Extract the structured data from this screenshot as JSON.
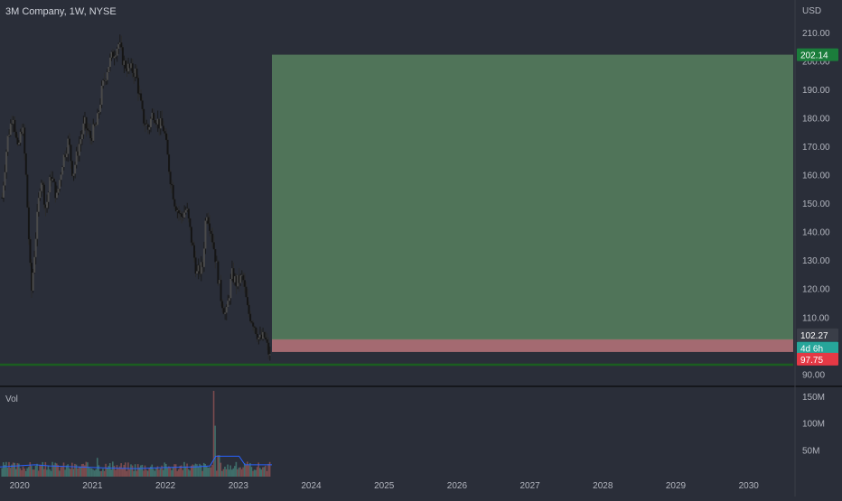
{
  "header": {
    "title": "3M Company, 1W, NYSE",
    "currency": "USD",
    "volume_label": "Vol"
  },
  "colors": {
    "background": "#2a2e39",
    "up": "#26a69a",
    "down": "#ef5350",
    "candle": "#1e1e1e",
    "profit_zone": "#6fae74",
    "loss_zone": "#e68a8f",
    "support_line": "#1b5e20",
    "target_badge": "#1b7d3b",
    "stop_badge": "#e53945",
    "price_badge": "#3a3e48",
    "countdown_badge": "#26a69a"
  },
  "chart_data": {
    "type": "candlestick",
    "y_axis": {
      "ticks": [
        "90.00",
        "100.00",
        "110.00",
        "120.00",
        "130.00",
        "140.00",
        "150.00",
        "160.00",
        "170.00",
        "180.00",
        "190.00",
        "200.00",
        "210.00"
      ],
      "range": [
        86,
        215
      ]
    },
    "x_axis": {
      "ticks": [
        "2020",
        "2021",
        "2022",
        "2023",
        "2024",
        "2025",
        "2026",
        "2027",
        "2028",
        "2029",
        "2030"
      ],
      "range": [
        2020.0,
        2030.6
      ]
    },
    "price_path": [
      [
        2019.75,
        152
      ],
      [
        2019.82,
        172
      ],
      [
        2019.9,
        182
      ],
      [
        2019.96,
        168
      ],
      [
        2020.03,
        178
      ],
      [
        2020.08,
        158
      ],
      [
        2020.15,
        118
      ],
      [
        2020.2,
        135
      ],
      [
        2020.28,
        160
      ],
      [
        2020.35,
        148
      ],
      [
        2020.42,
        160
      ],
      [
        2020.5,
        152
      ],
      [
        2020.58,
        165
      ],
      [
        2020.66,
        172
      ],
      [
        2020.72,
        160
      ],
      [
        2020.8,
        170
      ],
      [
        2020.88,
        178
      ],
      [
        2020.96,
        173
      ],
      [
        2021.05,
        178
      ],
      [
        2021.12,
        190
      ],
      [
        2021.2,
        198
      ],
      [
        2021.28,
        203
      ],
      [
        2021.35,
        206
      ],
      [
        2021.42,
        199
      ],
      [
        2021.5,
        197
      ],
      [
        2021.58,
        196
      ],
      [
        2021.63,
        188
      ],
      [
        2021.68,
        180
      ],
      [
        2021.75,
        176
      ],
      [
        2021.82,
        182
      ],
      [
        2021.9,
        178
      ],
      [
        2021.97,
        176
      ],
      [
        2022.05,
        160
      ],
      [
        2022.12,
        150
      ],
      [
        2022.2,
        145
      ],
      [
        2022.28,
        148
      ],
      [
        2022.36,
        135
      ],
      [
        2022.42,
        125
      ],
      [
        2022.5,
        128
      ],
      [
        2022.55,
        148
      ],
      [
        2022.62,
        140
      ],
      [
        2022.68,
        130
      ],
      [
        2022.75,
        117
      ],
      [
        2022.82,
        110
      ],
      [
        2022.9,
        125
      ],
      [
        2022.96,
        122
      ],
      [
        2023.05,
        124
      ],
      [
        2023.12,
        112
      ],
      [
        2023.2,
        108
      ],
      [
        2023.28,
        102
      ],
      [
        2023.35,
        103
      ],
      [
        2023.4,
        98
      ],
      [
        2023.43,
        95
      ]
    ],
    "position": {
      "type": "long",
      "entry": 102.27,
      "target": 202.14,
      "stop": 97.75,
      "x_start": 2023.45,
      "x_end": 2030.6
    },
    "support_level": 93.3,
    "current_price": 102.27,
    "countdown": "4d 6h",
    "price_labels": {
      "target": "202.14",
      "current": "102.27",
      "stop": "97.75"
    },
    "volume": {
      "ticks": [
        "150M",
        "100M",
        "50M"
      ],
      "range": [
        0,
        165
      ],
      "units": "M",
      "base_level": 20,
      "spikes": [
        [
          2021.05,
          35
        ],
        [
          2022.65,
          160
        ],
        [
          2022.68,
          95
        ],
        [
          2022.72,
          40
        ]
      ],
      "moving_average": [
        [
          2019.7,
          18
        ],
        [
          2020.2,
          22
        ],
        [
          2020.4,
          20
        ],
        [
          2020.8,
          18
        ],
        [
          2021.2,
          16
        ],
        [
          2021.6,
          15
        ],
        [
          2022.0,
          17
        ],
        [
          2022.4,
          18
        ],
        [
          2022.6,
          20
        ],
        [
          2022.68,
          38
        ],
        [
          2023.0,
          38
        ],
        [
          2023.08,
          22
        ],
        [
          2023.45,
          22
        ]
      ]
    }
  }
}
